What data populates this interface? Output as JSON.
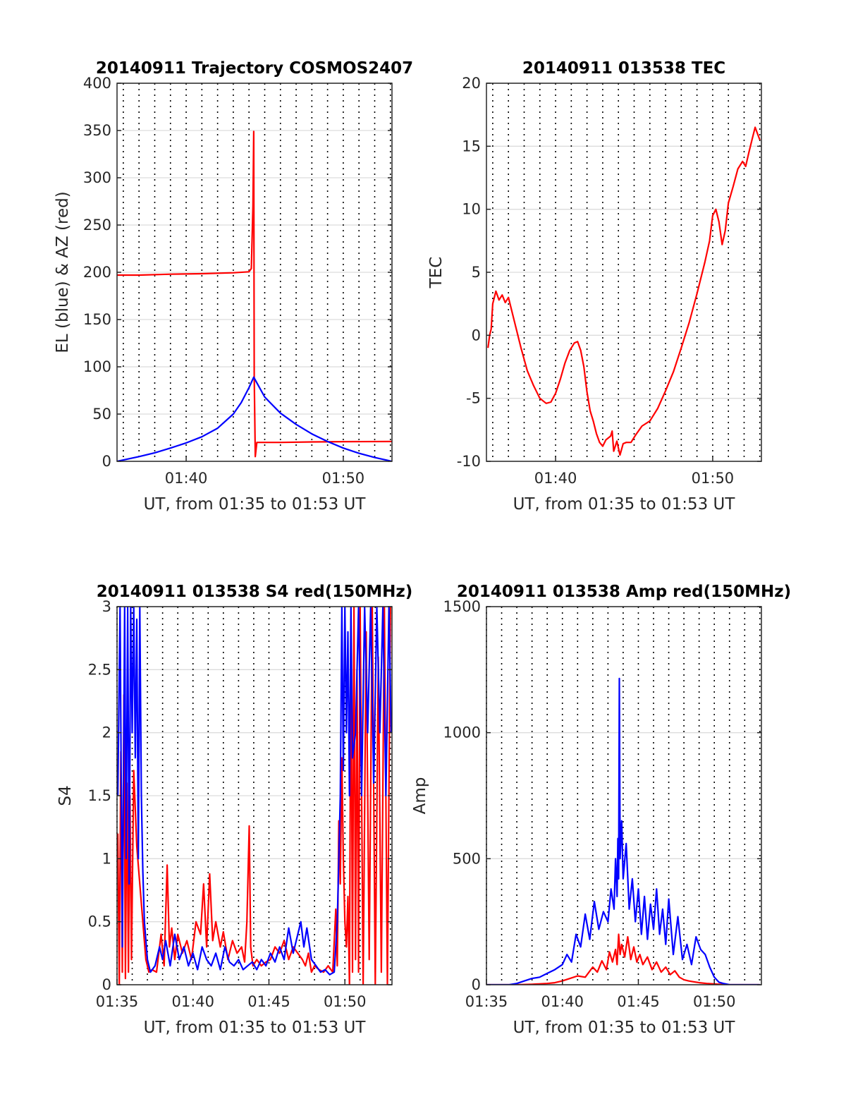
{
  "chart_data": [
    {
      "type": "line",
      "title": "20140911 Trajectory COSMOS2407",
      "xlabel": "UT, from 01:35 to 01:53 UT",
      "ylabel": "EL (blue) & AZ (red)",
      "xlim": [
        35.6,
        53.1
      ],
      "ylim": [
        0,
        400
      ],
      "yticks": [
        0,
        50,
        100,
        150,
        200,
        250,
        300,
        350,
        400
      ],
      "xticks": [
        40,
        50
      ],
      "xticklabels": [
        "01:40",
        "01:50"
      ],
      "grid": true,
      "series": [
        {
          "color": "#ff0000",
          "x": [
            35.6,
            37,
            39,
            41,
            43,
            44.0,
            44.15,
            44.25,
            44.3,
            44.33,
            44.4,
            44.5,
            46,
            48,
            50,
            53.1
          ],
          "y": [
            197,
            197,
            198,
            198.5,
            199.5,
            200.5,
            204,
            270,
            349,
            90,
            5,
            20,
            20,
            20.5,
            20.8,
            21
          ]
        },
        {
          "color": "#0000ff",
          "x": [
            35.6,
            37,
            38,
            39,
            40,
            41,
            42,
            43,
            43.5,
            44.0,
            44.3,
            44.6,
            45,
            46,
            47,
            48,
            49,
            50,
            51,
            52,
            53.1
          ],
          "y": [
            0,
            5,
            9,
            14,
            19.5,
            26,
            35,
            50,
            62,
            78,
            89,
            80,
            68,
            51,
            39,
            29,
            21,
            14,
            8.5,
            4,
            0
          ]
        }
      ]
    },
    {
      "type": "line",
      "title": "20140911 013538 TEC",
      "xlabel": "UT, from 01:35 to 01:53 UT",
      "ylabel": "TEC",
      "xlim": [
        35.6,
        53.1
      ],
      "ylim": [
        -10,
        20
      ],
      "yticks": [
        -10,
        -5,
        0,
        5,
        10,
        15,
        20
      ],
      "xticks": [
        40,
        50
      ],
      "xticklabels": [
        "01:40",
        "01:50"
      ],
      "grid": true,
      "series": [
        {
          "color": "#ff0000",
          "x": [
            35.7,
            35.8,
            35.9,
            36.0,
            36.2,
            36.4,
            36.6,
            36.8,
            37.0,
            37.4,
            37.8,
            38.2,
            38.6,
            39.0,
            39.4,
            39.7,
            40.0,
            40.3,
            40.6,
            40.9,
            41.2,
            41.4,
            41.6,
            41.8,
            42.0,
            42.2,
            42.4,
            42.6,
            42.8,
            43.0,
            43.2,
            43.5,
            43.6,
            43.7,
            43.9,
            44.1,
            44.3,
            44.5,
            44.8,
            45.1,
            45.5,
            46.0,
            46.5,
            47.0,
            47.5,
            48.0,
            48.5,
            49.0,
            49.5,
            49.8,
            50.0,
            50.2,
            50.4,
            50.6,
            50.8,
            51.0,
            51.3,
            51.6,
            51.9,
            52.1,
            52.3,
            52.5,
            52.7,
            53.0
          ],
          "y": [
            -1.0,
            0.0,
            0.5,
            2.5,
            3.5,
            2.8,
            3.2,
            2.6,
            3.0,
            1.0,
            -1.0,
            -2.8,
            -4.0,
            -5.0,
            -5.4,
            -5.3,
            -4.6,
            -3.5,
            -2.2,
            -1.2,
            -0.6,
            -0.5,
            -1.2,
            -2.5,
            -4.5,
            -6.0,
            -6.8,
            -7.8,
            -8.5,
            -8.8,
            -8.3,
            -8.0,
            -7.6,
            -9.2,
            -8.4,
            -9.5,
            -8.6,
            -8.5,
            -8.5,
            -7.9,
            -7.2,
            -6.8,
            -5.8,
            -4.4,
            -2.9,
            -1.0,
            1.0,
            3.3,
            5.8,
            7.5,
            9.5,
            10.0,
            9.0,
            7.2,
            8.3,
            10.5,
            11.8,
            13.2,
            13.8,
            13.4,
            14.5,
            15.5,
            16.5,
            15.5
          ]
        }
      ]
    },
    {
      "type": "line",
      "title": "20140911 013538 S4 red(150MHz)",
      "xlabel": "UT, from 01:35 to 01:53 UT",
      "ylabel": "S4",
      "xlim": [
        35,
        53.1
      ],
      "ylim": [
        0,
        3
      ],
      "yticks": [
        0,
        0.5,
        1,
        1.5,
        2,
        2.5,
        3
      ],
      "yticklabels": [
        "0",
        "0.5",
        "1",
        "1.5",
        "2",
        "2.5",
        "3"
      ],
      "xticks": [
        35,
        40,
        45,
        50
      ],
      "xticklabels": [
        "01:35",
        "01:40",
        "01:45",
        "01:50"
      ],
      "grid": true,
      "series": [
        {
          "color": "#ff0000",
          "x": [
            35.05,
            35.15,
            35.25,
            35.35,
            35.45,
            35.55,
            35.65,
            35.75,
            35.85,
            35.95,
            36.1,
            36.3,
            36.5,
            36.7,
            36.9,
            37.1,
            37.3,
            37.6,
            37.9,
            38.1,
            38.3,
            38.45,
            38.6,
            38.8,
            39.0,
            39.3,
            39.6,
            39.9,
            40.2,
            40.5,
            40.7,
            40.9,
            41.0,
            41.1,
            41.3,
            41.5,
            41.8,
            42.0,
            42.3,
            42.6,
            42.9,
            43.2,
            43.4,
            43.55,
            43.7,
            43.8,
            43.95,
            44.2,
            44.5,
            44.8,
            45.1,
            45.4,
            45.7,
            46.0,
            46.3,
            46.6,
            46.9,
            47.2,
            47.4,
            47.6,
            47.8,
            48.0,
            48.3,
            48.6,
            48.9,
            49.2,
            49.4,
            49.5,
            49.6,
            49.7,
            49.8,
            49.9,
            50.0,
            50.1,
            50.2,
            50.3,
            50.4,
            50.5,
            50.6,
            50.7,
            50.8,
            50.9,
            51.0,
            51.2,
            51.4,
            51.6,
            51.8,
            52.0,
            52.2,
            52.4,
            52.6,
            52.8,
            53.0
          ],
          "y": [
            1.2,
            0.0,
            1.85,
            0.1,
            2.3,
            0.05,
            1.6,
            0.1,
            1.5,
            0.2,
            1.7,
            1.1,
            0.8,
            0.5,
            0.2,
            0.1,
            0.12,
            0.1,
            0.4,
            0.15,
            0.95,
            0.3,
            0.45,
            0.2,
            0.4,
            0.25,
            0.35,
            0.2,
            0.5,
            0.4,
            0.8,
            0.3,
            0.6,
            0.88,
            0.35,
            0.5,
            0.3,
            0.42,
            0.2,
            0.35,
            0.25,
            0.3,
            0.18,
            0.5,
            1.26,
            0.3,
            0.15,
            0.2,
            0.15,
            0.18,
            0.2,
            0.3,
            0.25,
            0.35,
            0.2,
            0.3,
            0.25,
            0.2,
            0.15,
            0.25,
            0.1,
            0.15,
            0.12,
            0.1,
            0.15,
            0.1,
            0.6,
            0.15,
            1.3,
            0.8,
            1.8,
            1.0,
            0.5,
            0.3,
            0.7,
            0.0,
            2.9,
            0.1,
            3.0,
            0.2,
            2.5,
            0.1,
            3.0,
            0.0,
            2.8,
            0.2,
            3.0,
            0.0,
            2.6,
            0.1,
            3.0,
            0.0,
            3.0
          ]
        },
        {
          "color": "#0000ff",
          "x": [
            35.05,
            35.2,
            35.35,
            35.5,
            35.6,
            35.7,
            35.8,
            35.9,
            36.0,
            36.1,
            36.2,
            36.3,
            36.4,
            36.5,
            36.6,
            36.7,
            36.8,
            37.0,
            37.2,
            37.5,
            37.8,
            38.0,
            38.2,
            38.5,
            38.8,
            39.1,
            39.4,
            39.7,
            40.0,
            40.3,
            40.6,
            40.9,
            41.2,
            41.5,
            41.8,
            42.1,
            42.4,
            42.7,
            43.0,
            43.3,
            43.6,
            43.9,
            44.2,
            44.5,
            44.8,
            45.1,
            45.4,
            45.7,
            46.0,
            46.3,
            46.6,
            46.9,
            47.1,
            47.3,
            47.5,
            47.8,
            48.1,
            48.4,
            48.7,
            49.0,
            49.3,
            49.5,
            49.6,
            49.7,
            49.8,
            49.9,
            50.0,
            50.1,
            50.2,
            50.3,
            50.4,
            50.5,
            50.7,
            50.9,
            51.1,
            51.3,
            51.5,
            51.7,
            51.9,
            52.1,
            52.3,
            52.5,
            52.7,
            52.9,
            53.05
          ],
          "y": [
            1.5,
            3.0,
            0.3,
            3.0,
            1.0,
            3.0,
            0.8,
            3.0,
            2.0,
            3.0,
            1.8,
            2.9,
            1.0,
            3.0,
            1.5,
            0.9,
            0.5,
            0.2,
            0.1,
            0.15,
            0.3,
            0.2,
            0.35,
            0.15,
            0.4,
            0.2,
            0.3,
            0.15,
            0.25,
            0.12,
            0.3,
            0.2,
            0.15,
            0.25,
            0.12,
            0.3,
            0.18,
            0.15,
            0.2,
            0.12,
            0.15,
            0.18,
            0.12,
            0.2,
            0.15,
            0.25,
            0.18,
            0.3,
            0.2,
            0.45,
            0.25,
            0.4,
            0.5,
            0.3,
            0.45,
            0.2,
            0.15,
            0.1,
            0.12,
            0.08,
            0.1,
            0.5,
            1.0,
            1.5,
            3.0,
            1.7,
            3.0,
            2.0,
            2.8,
            1.5,
            3.0,
            1.8,
            2.0,
            3.0,
            1.5,
            3.0,
            2.0,
            3.0,
            1.6,
            3.0,
            2.0,
            3.0,
            1.5,
            3.0,
            2.0
          ]
        }
      ]
    },
    {
      "type": "line",
      "title": "20140911 013538 Amp red(150MHz)",
      "xlabel": "UT, from 01:35 to 01:53 UT",
      "ylabel": "Amp",
      "xlim": [
        35,
        53.1
      ],
      "ylim": [
        0,
        1500
      ],
      "yticks": [
        0,
        500,
        1000,
        1500
      ],
      "xticks": [
        35,
        40,
        45,
        50
      ],
      "xticklabels": [
        "01:35",
        "01:40",
        "01:45",
        "01:50"
      ],
      "grid": true,
      "series": [
        {
          "color": "#ff0000",
          "x": [
            35.0,
            37.0,
            38.0,
            39.0,
            39.5,
            40.0,
            40.5,
            41.0,
            41.5,
            42.0,
            42.3,
            42.6,
            42.9,
            43.1,
            43.3,
            43.5,
            43.6,
            43.7,
            43.8,
            43.9,
            44.1,
            44.3,
            44.5,
            44.7,
            44.9,
            45.1,
            45.3,
            45.6,
            45.9,
            46.2,
            46.5,
            46.8,
            47.1,
            47.4,
            47.7,
            48.0,
            48.3,
            48.6,
            49.0,
            49.5,
            50.0,
            51.0,
            53.0
          ],
          "y": [
            0,
            0,
            2,
            5,
            8,
            15,
            25,
            35,
            30,
            70,
            50,
            95,
            60,
            130,
            90,
            140,
            80,
            200,
            120,
            160,
            110,
            190,
            100,
            150,
            90,
            120,
            80,
            110,
            60,
            90,
            50,
            70,
            40,
            55,
            30,
            20,
            15,
            12,
            8,
            5,
            3,
            0,
            0
          ]
        },
        {
          "color": "#0000ff",
          "x": [
            35.0,
            36.5,
            37.0,
            37.5,
            38.0,
            38.5,
            39.0,
            39.5,
            40.0,
            40.3,
            40.6,
            40.9,
            41.2,
            41.5,
            41.8,
            42.1,
            42.4,
            42.7,
            43.0,
            43.2,
            43.4,
            43.5,
            43.6,
            43.65,
            43.7,
            43.75,
            43.8,
            43.9,
            44.0,
            44.2,
            44.4,
            44.6,
            44.8,
            45.0,
            45.2,
            45.4,
            45.6,
            45.8,
            46.0,
            46.2,
            46.4,
            46.6,
            46.8,
            47.0,
            47.3,
            47.6,
            47.9,
            48.2,
            48.5,
            48.8,
            49.1,
            49.4,
            49.7,
            50.0,
            50.3,
            50.6,
            51.0,
            52.0,
            53.0
          ],
          "y": [
            0,
            0,
            5,
            15,
            25,
            30,
            45,
            60,
            80,
            120,
            90,
            200,
            150,
            280,
            180,
            330,
            220,
            290,
            250,
            380,
            300,
            500,
            350,
            580,
            420,
            1215,
            500,
            650,
            420,
            560,
            300,
            420,
            250,
            380,
            200,
            350,
            180,
            320,
            220,
            380,
            200,
            300,
            160,
            340,
            120,
            270,
            100,
            160,
            80,
            190,
            140,
            120,
            70,
            30,
            10,
            5,
            0,
            0,
            0
          ]
        }
      ]
    }
  ]
}
